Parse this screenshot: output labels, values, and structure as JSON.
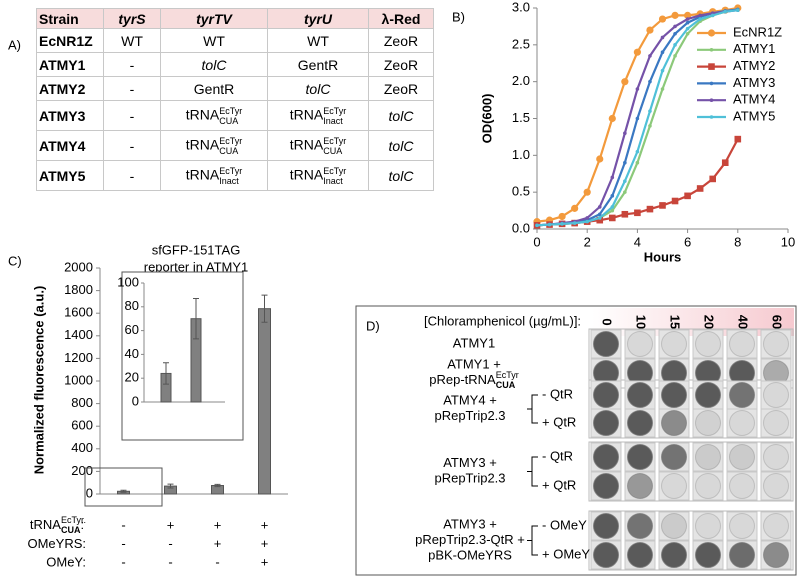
{
  "panel_labels": [
    "A)",
    "B)",
    "C)",
    "D)"
  ],
  "table": {
    "header": [
      "Strain",
      "tyrS",
      "tyrTV",
      "tyrU",
      "λ-Red"
    ],
    "rows": [
      [
        "EcNR1Z",
        "WT",
        "WT",
        "WT",
        "ZeoR"
      ],
      [
        "ATMY1",
        "-",
        {
          "text": "tolC",
          "style": "italic"
        },
        "GentR",
        "ZeoR"
      ],
      [
        "ATMY2",
        "-",
        "GentR",
        {
          "text": "tolC",
          "style": "italic"
        },
        "ZeoR"
      ],
      [
        "ATMY3",
        "-",
        {
          "base": "tRNA",
          "sup": "EcTyr",
          "sub": "CUA"
        },
        {
          "base": "tRNA",
          "sup": "EcTyr",
          "sub": "Inact"
        },
        {
          "text": "tolC",
          "style": "italic"
        }
      ],
      [
        "ATMY4",
        "-",
        {
          "base": "tRNA",
          "sup": "EcTyr",
          "sub": "CUA"
        },
        {
          "base": "tRNA",
          "sup": "EcTyr",
          "sub": "CUA"
        },
        {
          "text": "tolC",
          "style": "italic"
        }
      ],
      [
        "ATMY5",
        "-",
        {
          "base": "tRNA",
          "sup": "EcTyr",
          "sub": "Inact"
        },
        {
          "base": "tRNA",
          "sup": "EcTyr",
          "sub": "Inact"
        },
        {
          "text": "tolC",
          "style": "italic"
        }
      ]
    ]
  },
  "chart_data": [
    {
      "type": "line",
      "xlabel": "Hours",
      "ylabel": "OD(600)",
      "x": [
        0,
        0.5,
        1,
        1.5,
        2,
        2.5,
        3,
        3.5,
        4,
        4.5,
        5,
        5.5,
        6,
        6.5,
        7,
        7.5,
        8
      ],
      "xlim": [
        0,
        10
      ],
      "xticks": [
        0,
        2,
        4,
        6,
        8,
        10
      ],
      "ylim": [
        0,
        3
      ],
      "yticks": [
        {
          "value": 0,
          "label": "0.0"
        },
        {
          "value": 0.5,
          "label": "0.5"
        },
        {
          "value": 1,
          "label": "1.0"
        },
        {
          "value": 1.5,
          "label": "1.5"
        },
        {
          "value": 2,
          "label": "2.0"
        },
        {
          "value": 2.5,
          "label": "2.5"
        },
        {
          "value": 3,
          "label": "3.0"
        }
      ],
      "legend": "upper right",
      "series": [
        {
          "name": "EcNR1Z",
          "color": "#f39a3c",
          "marker": "circle",
          "values": [
            0.1,
            0.12,
            0.17,
            0.28,
            0.5,
            0.95,
            1.5,
            2.0,
            2.4,
            2.7,
            2.85,
            2.9,
            2.9,
            2.92,
            2.95,
            2.97,
            3.0
          ]
        },
        {
          "name": "ATMY1",
          "color": "#8cc97a",
          "marker": "dot",
          "values": [
            0.05,
            0.06,
            0.07,
            0.08,
            0.1,
            0.15,
            0.25,
            0.5,
            0.9,
            1.4,
            1.9,
            2.35,
            2.65,
            2.82,
            2.9,
            2.95,
            2.98
          ]
        },
        {
          "name": "ATMY2",
          "color": "#c8453a",
          "marker": "square",
          "values": [
            0.05,
            0.06,
            0.07,
            0.08,
            0.1,
            0.12,
            0.15,
            0.2,
            0.22,
            0.27,
            0.32,
            0.38,
            0.45,
            0.55,
            0.68,
            0.9,
            1.22
          ]
        },
        {
          "name": "ATMY3",
          "color": "#3a78c2",
          "marker": "dot",
          "values": [
            0.05,
            0.06,
            0.07,
            0.09,
            0.12,
            0.2,
            0.45,
            0.9,
            1.5,
            2.0,
            2.4,
            2.65,
            2.8,
            2.88,
            2.93,
            2.96,
            2.98
          ]
        },
        {
          "name": "ATMY4",
          "color": "#7552a8",
          "marker": "dot",
          "values": [
            0.05,
            0.06,
            0.08,
            0.1,
            0.15,
            0.3,
            0.7,
            1.3,
            1.9,
            2.35,
            2.6,
            2.75,
            2.85,
            2.9,
            2.93,
            2.95,
            2.97
          ]
        },
        {
          "name": "ATMY5",
          "color": "#4fc0d8",
          "marker": "dot",
          "values": [
            0.05,
            0.06,
            0.07,
            0.08,
            0.1,
            0.15,
            0.3,
            0.65,
            1.05,
            1.6,
            2.15,
            2.5,
            2.72,
            2.85,
            2.9,
            2.95,
            2.97
          ]
        }
      ]
    },
    {
      "type": "bar",
      "title": [
        "sfGFP-151TAG",
        "reporter in ATMY1"
      ],
      "ylabel": "Normalized fluorescence (a.u.)",
      "values": [
        24,
        70,
        75,
        1640
      ],
      "errors": [
        9,
        17,
        10,
        120
      ],
      "color": "#808080",
      "ylim": [
        0,
        2000
      ],
      "yticks": [
        0,
        200,
        400,
        600,
        800,
        1000,
        1200,
        1400,
        1600,
        1800,
        2000
      ],
      "inset": {
        "ylim": [
          0,
          100
        ],
        "yticks": [
          0,
          20,
          40,
          60,
          80,
          100
        ]
      },
      "conditions": {
        "labels": [
          {
            "base": "tRNA",
            "sup": "EcTyr.",
            "sub": "CUA",
            "suffix": ":"
          },
          "OMeYRS:",
          "OMeY:"
        ],
        "rows": [
          [
            "-",
            "+",
            "+",
            "+"
          ],
          [
            "-",
            "-",
            "+",
            "+"
          ],
          [
            "-",
            "-",
            "-",
            "+"
          ]
        ]
      }
    }
  ],
  "plate": {
    "title": "[Chloramphenicol (µg/mL)]:",
    "concentrations": [
      "0",
      "10",
      "15",
      "20",
      "40",
      "60"
    ],
    "groups": [
      {
        "label": [
          "ATMY1"
        ]
      },
      {
        "label": [
          "ATMY1 +",
          {
            "base": "pRep-tRNA",
            "sup": "EcTyr",
            "sub": "CUA"
          }
        ]
      },
      {
        "label": [
          "ATMY4 +",
          "pRepTrip2.3"
        ],
        "conditions": [
          "- QtR",
          "+ QtR"
        ]
      },
      {
        "label": [
          "ATMY3 +",
          "pRepTrip2.3"
        ],
        "conditions": [
          "- QtR",
          "+ QtR"
        ]
      },
      {
        "label": [
          "ATMY3 +",
          "pRepTrip2.3-QtR +",
          "pBK-OMeYRS"
        ],
        "conditions": [
          "- OMeY",
          "+ OMeY"
        ]
      }
    ]
  }
}
